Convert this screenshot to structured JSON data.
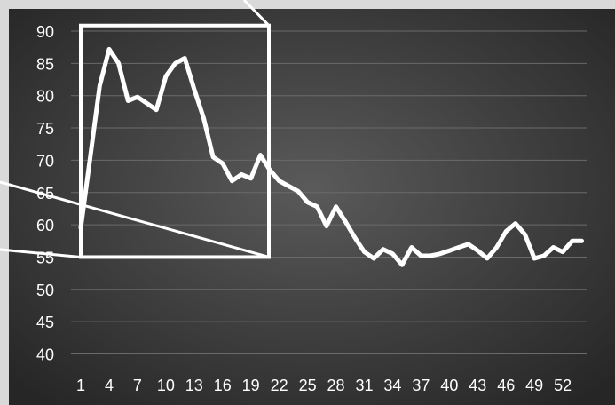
{
  "chart_data": {
    "type": "line",
    "title": "",
    "xlabel": "",
    "ylabel": "",
    "x": [
      1,
      2,
      3,
      4,
      5,
      6,
      7,
      8,
      9,
      10,
      11,
      12,
      13,
      14,
      15,
      16,
      17,
      18,
      19,
      20,
      21,
      22,
      23,
      24,
      25,
      26,
      27,
      28,
      29,
      30,
      31,
      32,
      33,
      34,
      35,
      36,
      37,
      38,
      39,
      40,
      41,
      42,
      43,
      44,
      45,
      46,
      47,
      48,
      49,
      50,
      51,
      52,
      53,
      54
    ],
    "x_tick_labels": [
      "1",
      "4",
      "7",
      "10",
      "13",
      "16",
      "19",
      "22",
      "25",
      "28",
      "31",
      "34",
      "37",
      "40",
      "43",
      "46",
      "49",
      "52"
    ],
    "y_tick_labels": [
      "90",
      "85",
      "80",
      "75",
      "70",
      "65",
      "60",
      "55",
      "50",
      "45",
      "40"
    ],
    "ylim": [
      40,
      90
    ],
    "grid": true,
    "series": [
      {
        "name": "",
        "color": "#ffffff",
        "values": [
          59.5,
          70.5,
          81.5,
          87.2,
          85,
          79.2,
          79.8,
          78.8,
          77.8,
          83,
          85,
          85.8,
          81,
          76.5,
          70.5,
          69.5,
          66.8,
          67.8,
          67.2,
          70.8,
          68.5,
          66.8,
          66,
          65.2,
          63.5,
          62.8,
          59.8,
          62.8,
          60.5,
          58,
          55.8,
          54.8,
          56.2,
          55.5,
          53.8,
          56.5,
          55.2,
          55.2,
          55.5,
          56,
          56.5,
          57,
          56,
          54.8,
          56.5,
          59,
          60.2,
          58.5,
          54.8,
          55.2,
          56.5,
          55.8,
          57.5,
          57.5
        ]
      }
    ],
    "zoom_box": {
      "x_range": [
        1,
        20
      ],
      "y_range": [
        55,
        91
      ]
    },
    "colors": {
      "page_background": "#d9d9d9",
      "plot_background_center": "#5a5a5a",
      "plot_background_edge": "#262626",
      "line": "#ffffff",
      "grid": "#6a6a6a",
      "text": "#ffffff"
    }
  }
}
